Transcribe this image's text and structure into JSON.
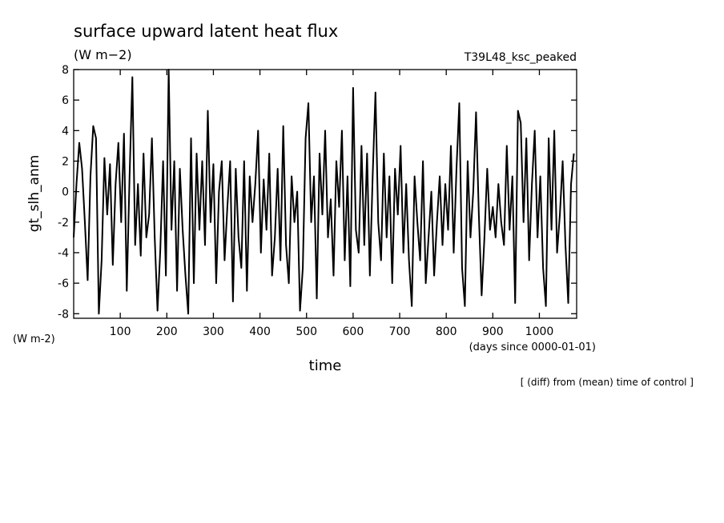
{
  "chart_data": {
    "type": "line",
    "title": "surface upward latent heat flux",
    "units_top": "(W m−2)",
    "run_label": "T39L48_ksc_peaked",
    "ylabel": "gt_slh_anm",
    "units_left": "(W m-2)",
    "x_units": "(days since 0000-01-01)",
    "xlabel": "time",
    "note": "[ (diff) from (mean) time of control ]",
    "x": [
      0,
      6,
      12,
      18,
      24,
      30,
      36,
      42,
      48,
      54,
      60,
      66,
      72,
      78,
      84,
      90,
      96,
      102,
      108,
      114,
      120,
      126,
      132,
      138,
      144,
      150,
      156,
      162,
      168,
      174,
      180,
      186,
      192,
      198,
      204,
      210,
      216,
      222,
      228,
      234,
      240,
      246,
      252,
      258,
      264,
      270,
      276,
      282,
      288,
      294,
      300,
      306,
      312,
      318,
      324,
      330,
      336,
      342,
      348,
      354,
      360,
      366,
      372,
      378,
      384,
      390,
      396,
      402,
      408,
      414,
      420,
      426,
      432,
      438,
      444,
      450,
      456,
      462,
      468,
      474,
      480,
      486,
      492,
      498,
      504,
      510,
      516,
      522,
      528,
      534,
      540,
      546,
      552,
      558,
      564,
      570,
      576,
      582,
      588,
      594,
      600,
      606,
      612,
      618,
      624,
      630,
      636,
      642,
      648,
      654,
      660,
      666,
      672,
      678,
      684,
      690,
      696,
      702,
      708,
      714,
      720,
      726,
      732,
      738,
      744,
      750,
      756,
      762,
      768,
      774,
      780,
      786,
      792,
      798,
      804,
      810,
      816,
      822,
      828,
      834,
      840,
      846,
      852,
      858,
      864,
      870,
      876,
      882,
      888,
      894,
      900,
      906,
      912,
      918,
      924,
      930,
      936,
      942,
      948,
      954,
      960,
      966,
      972,
      978,
      984,
      990,
      996,
      1002,
      1008,
      1014,
      1020,
      1026,
      1032,
      1038,
      1044,
      1050,
      1056,
      1062,
      1068,
      1074
    ],
    "series": [
      {
        "name": "gt_slh_anm",
        "color": "#000000",
        "values": [
          -3,
          0.5,
          3.2,
          1.5,
          -2,
          -5.8,
          1,
          4.3,
          3.5,
          -8,
          -4.5,
          2.2,
          -1.5,
          1.8,
          -4.8,
          0.5,
          3.2,
          -2,
          3.8,
          -6.5,
          1,
          7.5,
          -3.5,
          0.5,
          -4.2,
          2.5,
          -3,
          -1.5,
          3.5,
          -3,
          -7.8,
          -3.8,
          2,
          -5.5,
          8,
          -2.5,
          2,
          -6.5,
          1.5,
          -2.5,
          -5.5,
          -8,
          3.5,
          -6,
          2.5,
          -2.5,
          2,
          -3.5,
          5.3,
          -2,
          1.8,
          -6,
          0,
          2,
          -4.5,
          -1,
          2,
          -7.2,
          1.5,
          -3,
          -5,
          2,
          -6.5,
          1,
          -2,
          0.5,
          4,
          -4,
          0.8,
          -2.5,
          2.5,
          -5.5,
          -3,
          1.5,
          -4.5,
          4.3,
          -3.5,
          -6,
          1,
          -2,
          0,
          -7.8,
          -5,
          3.5,
          5.8,
          -2,
          1,
          -7,
          2.5,
          -1.5,
          4,
          -3,
          -0.5,
          -5.5,
          2,
          -1,
          4,
          -4.5,
          1,
          -6.2,
          6.8,
          -2.5,
          -4,
          3,
          -3.5,
          2.5,
          -5.5,
          1,
          6.5,
          -2,
          -4.5,
          2.5,
          -3,
          1,
          -6,
          1.5,
          -1.5,
          3,
          -4,
          0.5,
          -4.5,
          -7.5,
          1,
          -2,
          -4.5,
          2,
          -6,
          -3,
          0,
          -5.5,
          -2,
          1,
          -3.5,
          0.5,
          -2.5,
          3,
          -4,
          1.5,
          5.8,
          -5,
          -7.5,
          2,
          -3,
          0,
          5.2,
          -1.5,
          -6.8,
          -3,
          1.5,
          -2.5,
          -1,
          -3,
          0.5,
          -2,
          -3.5,
          3,
          -2.5,
          1,
          -7.3,
          5.3,
          4.5,
          -2,
          3.5,
          -4.5,
          0.5,
          4,
          -3,
          1,
          -5,
          -7.5,
          3.5,
          -2.5,
          4,
          -4,
          -1.5,
          2,
          -3.5,
          -7.3,
          0.5,
          2.5
        ]
      }
    ],
    "xlim": [
      0,
      1080
    ],
    "xticks": [
      100,
      200,
      300,
      400,
      500,
      600,
      700,
      800,
      900,
      1000
    ],
    "ylim": [
      -8.3,
      8
    ],
    "yticks": [
      -8,
      -6,
      -4,
      -2,
      0,
      2,
      4,
      6,
      8
    ]
  }
}
